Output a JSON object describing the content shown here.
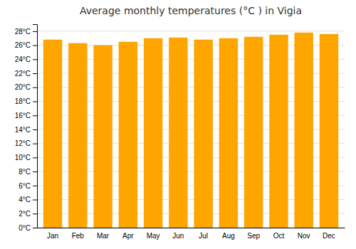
{
  "chart_data": {
    "type": "bar",
    "title": "Average monthly temperatures (°C ) in Vigia",
    "categories": [
      "Jan",
      "Feb",
      "Mar",
      "Apr",
      "May",
      "Jun",
      "Jul",
      "Aug",
      "Sep",
      "Oct",
      "Nov",
      "Dec"
    ],
    "values": [
      26.8,
      26.3,
      26.0,
      26.5,
      27.0,
      27.1,
      26.8,
      27.0,
      27.2,
      27.5,
      27.8,
      27.6
    ],
    "color": "#FFA500",
    "ylim": [
      0,
      29
    ],
    "yticks": [
      {
        "value": 0,
        "label": "0°C"
      },
      {
        "value": 2,
        "label": "2°C"
      },
      {
        "value": 4,
        "label": "4°C"
      },
      {
        "value": 6,
        "label": "6°C"
      },
      {
        "value": 8,
        "label": "8°C"
      },
      {
        "value": 10,
        "label": "10°C"
      },
      {
        "value": 12,
        "label": "12°C"
      },
      {
        "value": 14,
        "label": "14°C"
      },
      {
        "value": 16,
        "label": "16°C"
      },
      {
        "value": 18,
        "label": "18°C"
      },
      {
        "value": 20,
        "label": "20°C"
      },
      {
        "value": 22,
        "label": "22°C"
      },
      {
        "value": 24,
        "label": "24°C"
      },
      {
        "value": 26,
        "label": "26°C"
      },
      {
        "value": 28,
        "label": "28°C"
      }
    ],
    "grid": true
  }
}
